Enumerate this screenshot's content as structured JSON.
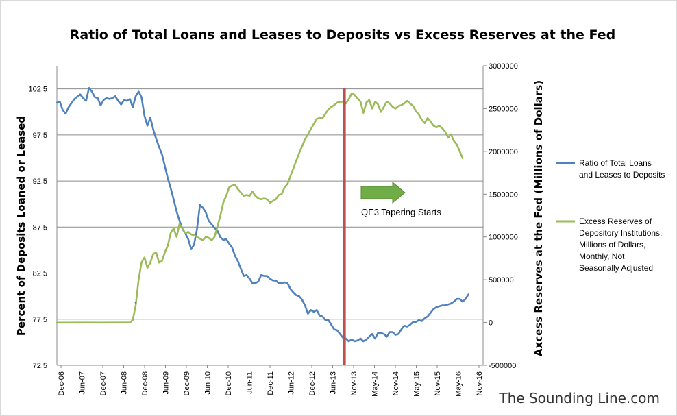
{
  "chart_data": {
    "type": "line",
    "title": "Ratio of Total Loans and Leases to Deposits vs Excess Reserves at the Fed",
    "ylabel_left": "Percent of Deposits Loaned or Leased",
    "ylabel_right": "Axcess Reserves at the Fed (Millions of Dollars)",
    "ylim_left": [
      72.5,
      105
    ],
    "ylim_right": [
      -500000,
      3000000
    ],
    "left_ticks": [
      "72.5",
      "77.5",
      "82.5",
      "87.5",
      "92.5",
      "97.5",
      "102.5"
    ],
    "right_ticks": [
      "-500000",
      "0",
      "500000",
      "1000000",
      "1500000",
      "2000000",
      "2500000",
      "3000000"
    ],
    "x_ticks": [
      "Dec-06",
      "Jun-07",
      "Dec-07",
      "Jun-08",
      "Dec-08",
      "Jun-09",
      "Dec-09",
      "Jun-10",
      "Dec-10",
      "Jun-11",
      "Dec-11",
      "Jun-12",
      "Dec-12",
      "Jun-13",
      "Nov-13",
      "May-14",
      "Nov-14",
      "May-15",
      "Nov-15",
      "May-16",
      "Nov-16"
    ],
    "grid": true,
    "legend_position": "right",
    "series": [
      {
        "name": "Ratio of Total Loans and Leases to Deposits",
        "axis": "left",
        "color": "#4f81bd",
        "points": [
          [
            0,
            101
          ],
          [
            1,
            101.1
          ],
          [
            2,
            100.2
          ],
          [
            3,
            99.8
          ],
          [
            4,
            100.5
          ],
          [
            6,
            101.4
          ],
          [
            8,
            101.9
          ],
          [
            9,
            101.5
          ],
          [
            10,
            101.2
          ],
          [
            11,
            102.6
          ],
          [
            12,
            102.2
          ],
          [
            13,
            101.6
          ],
          [
            14,
            101.5
          ],
          [
            15,
            100.7
          ],
          [
            16,
            101.3
          ],
          [
            17,
            101.5
          ],
          [
            18,
            101.4
          ],
          [
            19,
            101.5
          ],
          [
            20,
            101.7
          ],
          [
            21,
            101.2
          ],
          [
            22,
            100.8
          ],
          [
            23,
            101.3
          ],
          [
            24,
            101.2
          ],
          [
            25,
            101.4
          ],
          [
            26,
            100.5
          ],
          [
            27,
            101.7
          ],
          [
            28,
            102.2
          ],
          [
            29,
            101.6
          ],
          [
            30,
            99.6
          ],
          [
            31,
            98.5
          ],
          [
            32,
            99.4
          ],
          [
            33,
            98.1
          ],
          [
            34,
            97.1
          ],
          [
            35,
            96.2
          ],
          [
            36,
            95.4
          ],
          [
            37,
            94.1
          ],
          [
            38,
            92.8
          ],
          [
            39,
            91.7
          ],
          [
            40,
            90.5
          ],
          [
            41,
            89.2
          ],
          [
            42,
            88.2
          ],
          [
            43,
            87.3
          ],
          [
            44,
            86.8
          ],
          [
            45,
            86.2
          ],
          [
            46,
            85.1
          ],
          [
            47,
            85.6
          ],
          [
            48,
            87.3
          ],
          [
            49,
            89.9
          ],
          [
            50,
            89.6
          ],
          [
            51,
            89.1
          ],
          [
            52,
            88.2
          ],
          [
            53,
            87.8
          ],
          [
            54,
            87.4
          ],
          [
            55,
            87.1
          ],
          [
            56,
            86.4
          ],
          [
            57,
            86.1
          ],
          [
            58,
            86.2
          ],
          [
            59,
            85.7
          ],
          [
            60,
            85.3
          ],
          [
            61,
            84.4
          ],
          [
            62,
            83.8
          ],
          [
            63,
            83
          ],
          [
            64,
            82.2
          ],
          [
            65,
            82.3
          ],
          [
            66,
            81.9
          ],
          [
            67,
            81.4
          ],
          [
            68,
            81.4
          ],
          [
            69,
            81.6
          ],
          [
            70,
            82.3
          ],
          [
            71,
            82.2
          ],
          [
            72,
            82.2
          ],
          [
            73,
            81.9
          ],
          [
            74,
            81.7
          ],
          [
            75,
            81.7
          ],
          [
            76,
            81.4
          ],
          [
            77,
            81.4
          ],
          [
            78,
            81.5
          ],
          [
            79,
            81.4
          ],
          [
            80,
            80.8
          ],
          [
            81,
            80.4
          ],
          [
            82,
            80.1
          ],
          [
            83,
            80
          ],
          [
            84,
            79.6
          ],
          [
            85,
            79
          ],
          [
            86,
            78.1
          ],
          [
            87,
            78.5
          ],
          [
            88,
            78.3
          ],
          [
            89,
            78.5
          ],
          [
            90,
            77.9
          ],
          [
            91,
            77.8
          ],
          [
            92,
            77.4
          ],
          [
            93,
            77.4
          ],
          [
            94,
            76.9
          ],
          [
            95,
            76.4
          ],
          [
            96,
            76.3
          ],
          [
            97,
            75.9
          ],
          [
            98,
            75.5
          ],
          [
            99,
            75.4
          ],
          [
            100,
            75.1
          ],
          [
            101,
            75.3
          ],
          [
            102,
            75.1
          ],
          [
            103,
            75.2
          ],
          [
            104,
            75.4
          ],
          [
            105,
            75.1
          ],
          [
            106,
            75.3
          ],
          [
            107,
            75.6
          ],
          [
            108,
            75.9
          ],
          [
            109,
            75.4
          ],
          [
            110,
            76
          ],
          [
            111,
            76
          ],
          [
            112,
            75.9
          ],
          [
            113,
            75.6
          ],
          [
            114,
            76.1
          ],
          [
            115,
            76.1
          ],
          [
            116,
            75.8
          ],
          [
            117,
            75.9
          ],
          [
            118,
            76.4
          ],
          [
            119,
            76.8
          ],
          [
            120,
            76.7
          ],
          [
            121,
            76.9
          ],
          [
            122,
            77.2
          ],
          [
            123,
            77.2
          ],
          [
            124,
            77.4
          ],
          [
            125,
            77.3
          ],
          [
            126,
            77.6
          ],
          [
            127,
            77.8
          ],
          [
            128,
            78.2
          ],
          [
            129,
            78.6
          ],
          [
            130,
            78.8
          ],
          [
            131,
            78.9
          ],
          [
            132,
            79
          ],
          [
            133,
            79
          ],
          [
            134,
            79.1
          ],
          [
            135,
            79.2
          ],
          [
            136,
            79.4
          ],
          [
            137,
            79.7
          ],
          [
            138,
            79.7
          ],
          [
            139,
            79.4
          ],
          [
            140,
            79.7
          ],
          [
            141,
            80.2
          ]
        ]
      },
      {
        "name": "Excess Reserves of Depository Institutions, Millions of Dollars, Monthly, Not Seasonally Adjusted",
        "axis": "right",
        "color": "#9bbb59",
        "points": [
          [
            0,
            -2000
          ],
          [
            5,
            -2000
          ],
          [
            10,
            -1000
          ],
          [
            15,
            -2000
          ],
          [
            20,
            -1000
          ],
          [
            24,
            -1000
          ],
          [
            25,
            0
          ],
          [
            26,
            30000
          ],
          [
            27,
            200000
          ],
          [
            28,
            500000
          ],
          [
            29,
            700000
          ],
          [
            30,
            760000
          ],
          [
            31,
            640000
          ],
          [
            32,
            700000
          ],
          [
            33,
            800000
          ],
          [
            34,
            820000
          ],
          [
            35,
            700000
          ],
          [
            36,
            720000
          ],
          [
            37,
            820000
          ],
          [
            38,
            900000
          ],
          [
            39,
            1050000
          ],
          [
            40,
            1100000
          ],
          [
            41,
            1000000
          ],
          [
            42,
            1150000
          ],
          [
            43,
            1100000
          ],
          [
            44,
            1040000
          ],
          [
            45,
            1060000
          ],
          [
            46,
            1030000
          ],
          [
            47,
            1020000
          ],
          [
            48,
            1000000
          ],
          [
            49,
            980000
          ],
          [
            50,
            960000
          ],
          [
            51,
            1000000
          ],
          [
            52,
            990000
          ],
          [
            53,
            960000
          ],
          [
            54,
            1000000
          ],
          [
            55,
            1120000
          ],
          [
            56,
            1250000
          ],
          [
            57,
            1400000
          ],
          [
            58,
            1480000
          ],
          [
            59,
            1580000
          ],
          [
            60,
            1600000
          ],
          [
            61,
            1610000
          ],
          [
            62,
            1560000
          ],
          [
            63,
            1520000
          ],
          [
            64,
            1480000
          ],
          [
            65,
            1490000
          ],
          [
            66,
            1480000
          ],
          [
            67,
            1530000
          ],
          [
            68,
            1480000
          ],
          [
            69,
            1450000
          ],
          [
            70,
            1440000
          ],
          [
            71,
            1450000
          ],
          [
            72,
            1440000
          ],
          [
            73,
            1400000
          ],
          [
            74,
            1420000
          ],
          [
            75,
            1440000
          ],
          [
            76,
            1490000
          ],
          [
            77,
            1500000
          ],
          [
            78,
            1580000
          ],
          [
            79,
            1620000
          ],
          [
            80,
            1710000
          ],
          [
            81,
            1800000
          ],
          [
            82,
            1890000
          ],
          [
            83,
            1980000
          ],
          [
            84,
            2060000
          ],
          [
            85,
            2140000
          ],
          [
            86,
            2200000
          ],
          [
            87,
            2260000
          ],
          [
            88,
            2320000
          ],
          [
            89,
            2380000
          ],
          [
            90,
            2390000
          ],
          [
            91,
            2390000
          ],
          [
            92,
            2440000
          ],
          [
            93,
            2490000
          ],
          [
            94,
            2520000
          ],
          [
            95,
            2540000
          ],
          [
            96,
            2570000
          ],
          [
            97,
            2580000
          ],
          [
            98,
            2580000
          ],
          [
            99,
            2560000
          ],
          [
            100,
            2610000
          ],
          [
            101,
            2680000
          ],
          [
            102,
            2660000
          ],
          [
            103,
            2620000
          ],
          [
            104,
            2580000
          ],
          [
            105,
            2450000
          ],
          [
            106,
            2570000
          ],
          [
            107,
            2600000
          ],
          [
            108,
            2500000
          ],
          [
            109,
            2580000
          ],
          [
            110,
            2550000
          ],
          [
            111,
            2460000
          ],
          [
            112,
            2520000
          ],
          [
            113,
            2580000
          ],
          [
            114,
            2560000
          ],
          [
            115,
            2520000
          ],
          [
            116,
            2500000
          ],
          [
            117,
            2530000
          ],
          [
            118,
            2540000
          ],
          [
            119,
            2560000
          ],
          [
            120,
            2590000
          ],
          [
            121,
            2560000
          ],
          [
            122,
            2530000
          ],
          [
            123,
            2470000
          ],
          [
            124,
            2430000
          ],
          [
            125,
            2370000
          ],
          [
            126,
            2330000
          ],
          [
            127,
            2390000
          ],
          [
            128,
            2350000
          ],
          [
            129,
            2300000
          ],
          [
            130,
            2280000
          ],
          [
            131,
            2300000
          ],
          [
            132,
            2270000
          ],
          [
            133,
            2230000
          ],
          [
            134,
            2160000
          ],
          [
            135,
            2200000
          ],
          [
            136,
            2120000
          ],
          [
            137,
            2080000
          ],
          [
            138,
            2000000
          ],
          [
            139,
            1920000
          ]
        ]
      }
    ],
    "annotations": [
      {
        "type": "vertical-line",
        "label": "",
        "color": "#c0504d",
        "x": 98.5
      },
      {
        "type": "arrow",
        "label": "QE3 Tapering Starts",
        "color": "#70ad47"
      },
      {
        "type": "stray-point",
        "label": "",
        "color": "#4f81bd",
        "x": 26,
        "y": 79.3
      }
    ],
    "watermark": "The Sounding Line.com"
  }
}
